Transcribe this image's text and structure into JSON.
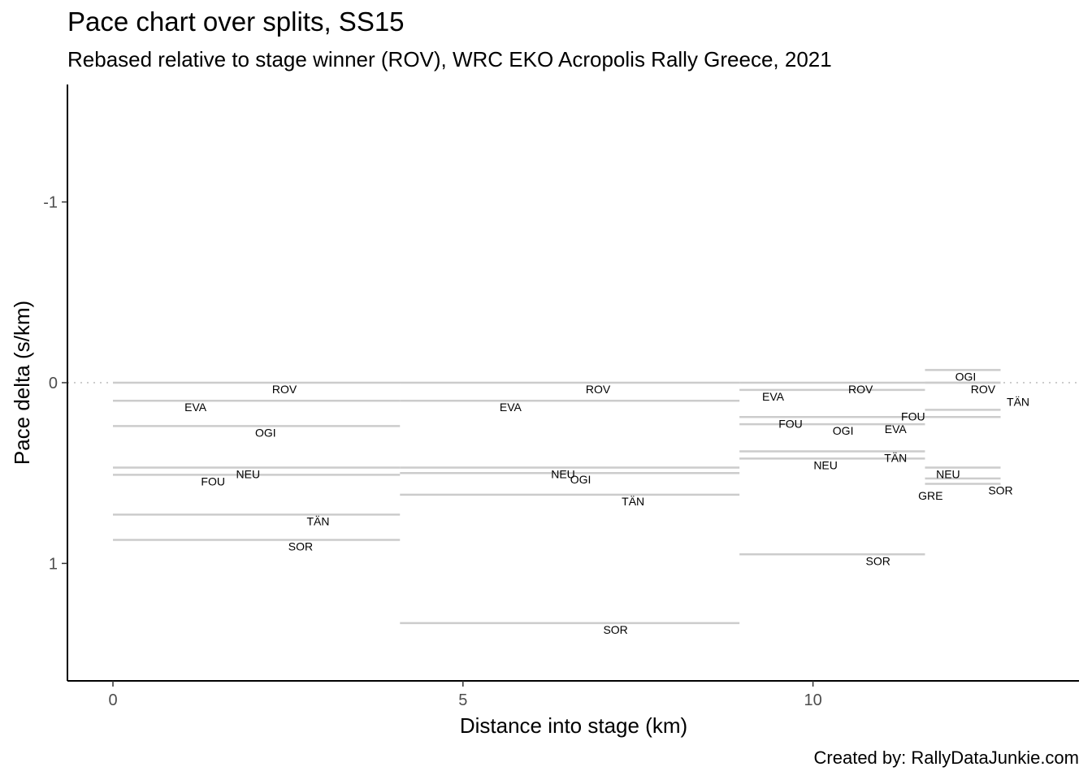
{
  "chart_data": {
    "type": "line",
    "title": "Pace chart over splits, SS15",
    "subtitle": "Rebased relative to stage winner (ROV), WRC EKO Acropolis Rally Greece, 2021",
    "caption": "Created by: RallyDataJunkie.com",
    "xlabel": "Distance into stage (km)",
    "ylabel": "Pace delta (s/km)",
    "xlim": [
      -0.65,
      13.8
    ],
    "ylim": [
      -1.65,
      1.65
    ],
    "y_reversed": true,
    "x_ticks": [
      0,
      5,
      10
    ],
    "y_ticks": [
      -1,
      0,
      1
    ],
    "reference_line": {
      "y": 0,
      "style": "dotted"
    },
    "grid": false,
    "colors": {
      "segment": "#cccccc",
      "axis": "#000000",
      "tick_label": "#4d4d4d",
      "reference": "#cccccc"
    },
    "splits": [
      {
        "x_start": 0,
        "x_end": 4.1,
        "segments": [
          {
            "driver": "ROV",
            "pace": 0.0,
            "label_x": 2.45
          },
          {
            "driver": "EVA",
            "pace": 0.1,
            "label_x": 1.18
          },
          {
            "driver": "OGI",
            "pace": 0.24,
            "label_x": 2.18
          },
          {
            "driver": "NEU",
            "pace": 0.47,
            "label_x": 1.93
          },
          {
            "driver": "FOU",
            "pace": 0.51,
            "label_x": 1.43
          },
          {
            "driver": "TÄN",
            "pace": 0.73,
            "label_x": 2.93
          },
          {
            "driver": "SOR",
            "pace": 0.87,
            "label_x": 2.68
          }
        ]
      },
      {
        "x_start": 4.1,
        "x_end": 8.95,
        "segments": [
          {
            "driver": "ROV",
            "pace": 0.0,
            "label_x": 6.93
          },
          {
            "driver": "EVA",
            "pace": 0.1,
            "label_x": 5.68
          },
          {
            "driver": "NEU",
            "pace": 0.47,
            "label_x": 6.43
          },
          {
            "driver": "OGI",
            "pace": 0.5,
            "label_x": 6.68
          },
          {
            "driver": "TÄN",
            "pace": 0.62,
            "label_x": 7.43
          },
          {
            "driver": "SOR",
            "pace": 1.33,
            "label_x": 7.18
          }
        ]
      },
      {
        "x_start": 8.95,
        "x_end": 11.6,
        "segments": [
          {
            "driver": "ROV",
            "pace": 0.0,
            "label_x": 10.68
          },
          {
            "driver": "EVA",
            "pace": 0.04,
            "label_x": 9.43
          },
          {
            "driver": "FOU",
            "pace": 0.19,
            "label_x": 9.68
          },
          {
            "driver": "OGI",
            "pace": 0.23,
            "label_x": 10.43
          },
          {
            "driver": "TÄN",
            "pace": 0.38,
            "label_x": 11.18
          },
          {
            "driver": "NEU",
            "pace": 0.42,
            "label_x": 10.18
          },
          {
            "driver": "SOR",
            "pace": 0.95,
            "label_x": 10.93
          }
        ]
      },
      {
        "x_start": 11.6,
        "x_end": 12.68,
        "segments": [
          {
            "driver": "OGI",
            "pace": -0.07,
            "label_x": 12.18
          },
          {
            "driver": "ROV",
            "pace": 0.0,
            "label_x": 12.43
          },
          {
            "driver": "TÄN",
            "pace": 0.0,
            "label_x": 12.93,
            "label_y": 0.07
          },
          {
            "driver": "FOU",
            "pace": 0.15,
            "label_x": 11.43
          },
          {
            "driver": "EVA",
            "pace": 0.19,
            "label_x": 11.18,
            "label_y": 0.22
          },
          {
            "driver": "NEU",
            "pace": 0.47,
            "label_x": 11.93
          },
          {
            "driver": "GRE",
            "pace": 0.53,
            "label_x": 11.68,
            "label_y": 0.59
          },
          {
            "driver": "SOR",
            "pace": 0.56,
            "label_x": 12.68,
            "label_y": 0.56
          }
        ]
      }
    ]
  }
}
